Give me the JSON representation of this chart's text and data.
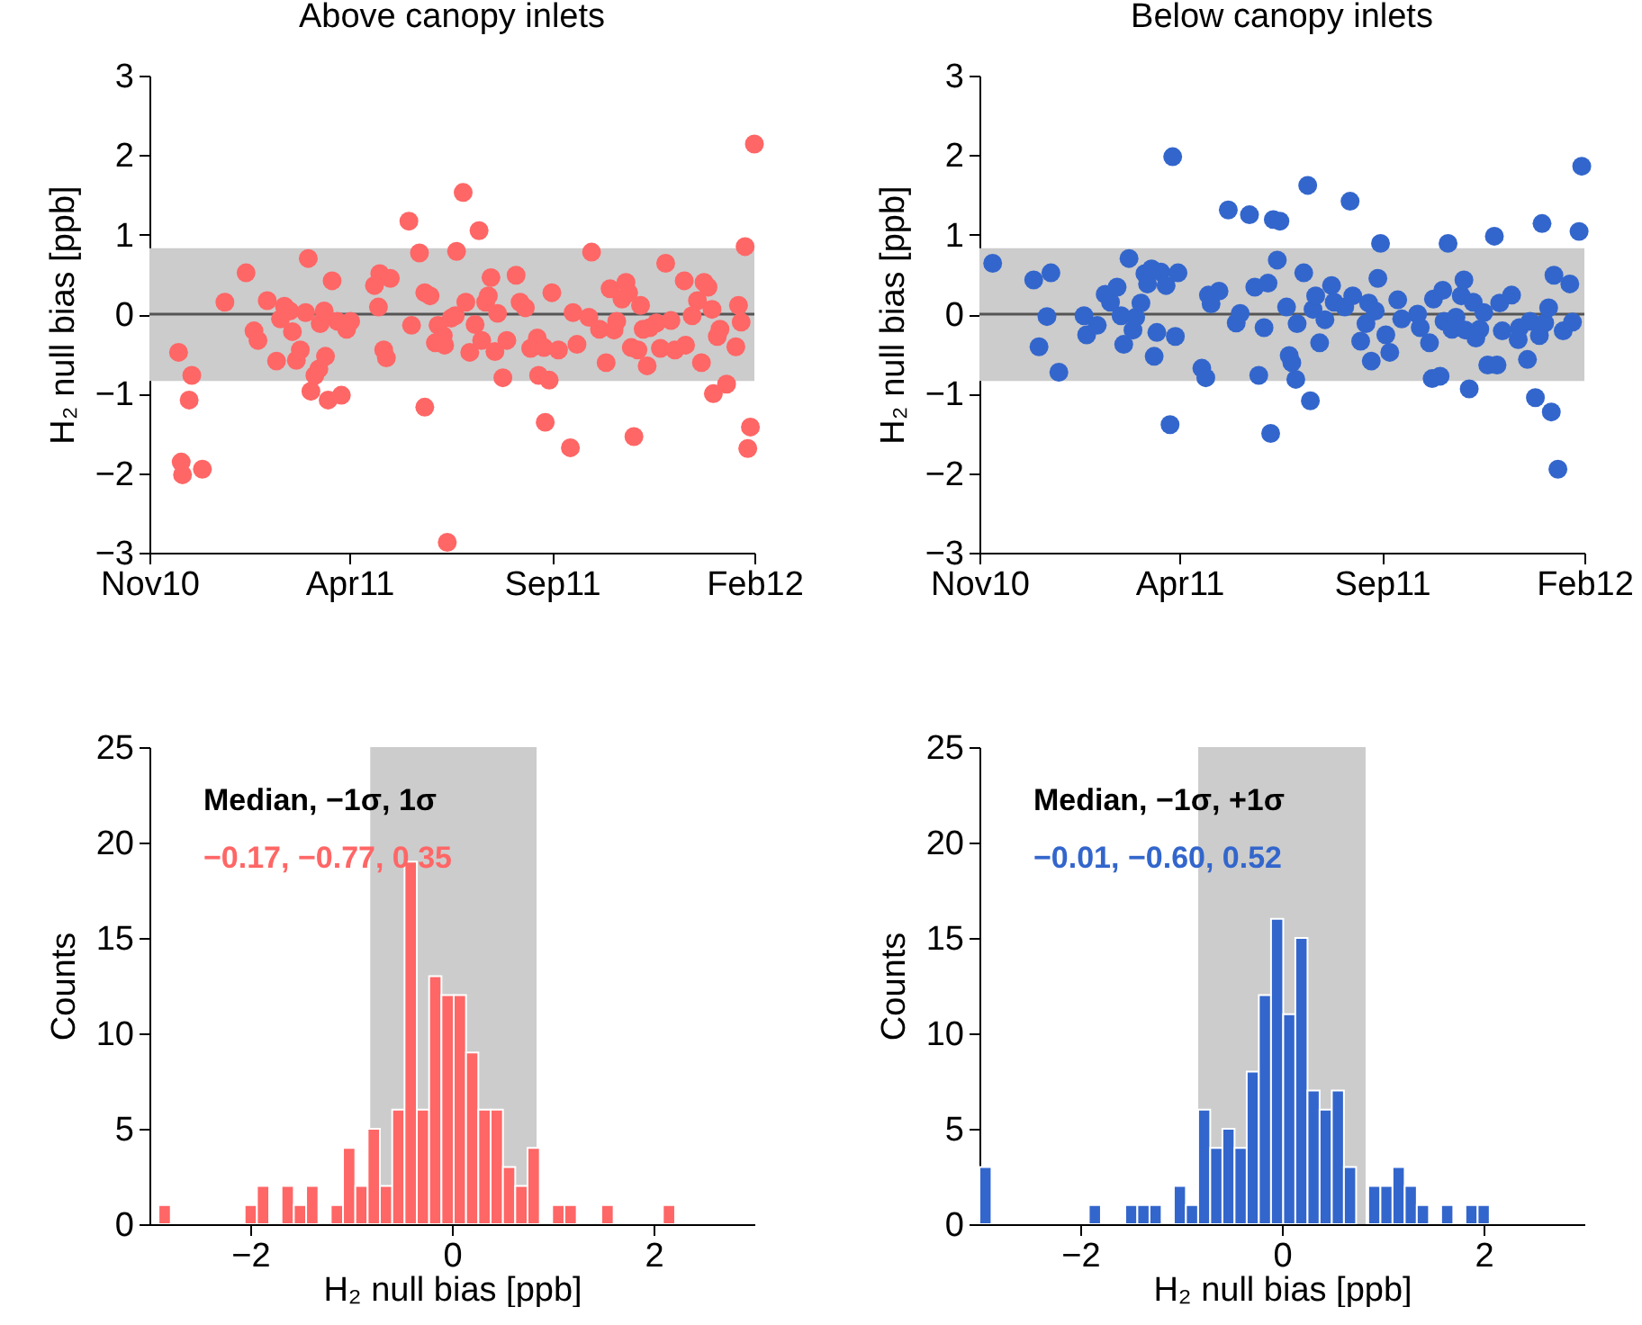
{
  "chart_data": [
    {
      "type": "scatter",
      "title": "Above canopy inlets",
      "ylabel": "H₂ null bias [ppb]",
      "marker": "circle",
      "x": [
        "2010-11-23",
        "2010-12-03",
        "2010-12-01",
        "2010-11-25",
        "2010-11-26",
        "2010-12-11",
        "2010-12-28",
        "2011-01-13",
        "2011-01-19",
        "2011-01-22",
        "2011-01-29",
        "2011-02-05",
        "2011-02-08",
        "2011-02-11",
        "2011-02-15",
        "2011-02-17",
        "2011-02-20",
        "2011-02-23",
        "2011-03-01",
        "2011-02-27",
        "2011-03-03",
        "2011-03-06",
        "2011-03-09",
        "2011-03-10",
        "2011-03-13",
        "2011-03-14",
        "2011-03-19",
        "2011-03-16",
        "2011-03-26",
        "2011-03-23",
        "2011-03-30",
        "2011-04-02",
        "2011-04-20",
        "2011-04-24",
        "2011-05-02",
        "2011-04-23",
        "2011-04-27",
        "2011-04-29",
        "2011-05-16",
        "2011-05-18",
        "2011-05-24",
        "2011-05-28",
        "2011-06-01",
        "2011-05-28",
        "2011-06-05",
        "2011-06-07",
        "2011-06-11",
        "2011-06-12",
        "2011-06-14",
        "2011-06-17",
        "2011-06-21",
        "2011-06-20",
        "2011-06-26",
        "2011-06-28",
        "2011-07-01",
        "2011-07-05",
        "2011-07-08",
        "2011-07-10",
        "2011-07-13",
        "2011-07-15",
        "2011-07-17",
        "2011-07-20",
        "2011-07-22",
        "2011-07-26",
        "2011-07-29",
        "2011-08-05",
        "2011-08-08",
        "2011-08-12",
        "2011-08-16",
        "2011-08-21",
        "2011-08-22",
        "2011-08-26",
        "2011-08-27",
        "2011-08-30",
        "2011-09-01",
        "2011-09-06",
        "2011-09-15",
        "2011-09-17",
        "2011-09-20",
        "2011-09-29",
        "2011-10-01",
        "2011-10-07",
        "2011-10-12",
        "2011-10-15",
        "2011-10-18",
        "2011-10-20",
        "2011-10-27",
        "2011-10-24",
        "2011-10-29",
        "2011-10-31",
        "2011-11-02",
        "2011-11-05",
        "2011-11-07",
        "2011-11-09",
        "2011-11-12",
        "2011-11-14",
        "2011-11-19",
        "2011-11-26",
        "2011-11-30",
        "2011-11-22",
        "2011-12-03",
        "2011-12-10",
        "2011-12-11",
        "2011-12-16",
        "2011-12-20",
        "2011-12-23",
        "2011-12-25",
        "2011-12-28",
        "2011-12-31",
        "2012-01-01",
        "2012-01-04",
        "2012-01-06",
        "2012-01-11",
        "2012-01-18",
        "2012-01-20",
        "2012-01-22",
        "2012-01-25",
        "2012-01-27",
        "2012-01-29",
        "2012-02-01"
      ],
      "series": [
        {
          "color": "#ff6666",
          "values": [
            -0.48,
            -0.77,
            -1.08,
            -1.86,
            -2.02,
            -1.95,
            0.15,
            0.52,
            -0.21,
            -0.33,
            0.17,
            -0.59,
            -0.06,
            0.1,
            0.04,
            -0.22,
            -0.58,
            -0.45,
            0.7,
            0.02,
            -0.97,
            -0.77,
            -0.69,
            -0.12,
            0.04,
            -0.53,
            0.42,
            -1.08,
            -1.02,
            -0.09,
            -0.19,
            -0.09,
            0.36,
            0.51,
            0.45,
            0.09,
            -0.45,
            -0.55,
            1.17,
            -0.14,
            0.77,
            0.27,
            0.23,
            -1.17,
            -0.36,
            -0.14,
            -0.27,
            -0.39,
            -2.87,
            -0.05,
            0.79,
            -0.02,
            1.53,
            0.15,
            -0.48,
            -0.13,
            1.05,
            -0.33,
            0.15,
            0.23,
            0.46,
            -0.47,
            0.01,
            -0.8,
            -0.33,
            0.49,
            0.15,
            0.08,
            -0.43,
            -0.3,
            -0.77,
            -0.42,
            -1.36,
            -0.83,
            0.27,
            -0.45,
            -1.68,
            0.02,
            -0.38,
            -0.04,
            0.78,
            -0.19,
            -0.61,
            0.32,
            -0.2,
            -0.09,
            0.4,
            0.19,
            0.27,
            -0.42,
            -1.54,
            -0.45,
            0.11,
            -0.19,
            -0.65,
            -0.17,
            -0.11,
            0.64,
            -0.08,
            -0.43,
            -0.45,
            0.42,
            -0.39,
            -0.02,
            0.17,
            -0.61,
            0.4,
            0.34,
            0.06,
            -1.0,
            -0.28,
            -0.19,
            -0.88,
            -0.41,
            0.11,
            -0.1,
            0.85,
            -1.69,
            -1.42,
            2.14
          ]
        }
      ],
      "xlim": [
        "2010-11-01",
        "2012-02-01"
      ],
      "xticks": [
        {
          "value": "2010-11-01",
          "label": "Nov10"
        },
        {
          "value": "2011-04-01",
          "label": "Apr11"
        },
        {
          "value": "2011-09-01",
          "label": "Sep11"
        },
        {
          "value": "2012-02-01",
          "label": "Feb12"
        }
      ],
      "ylim": [
        -3,
        3
      ],
      "yticks": [
        -3,
        -2,
        -1,
        0,
        1,
        2,
        3
      ],
      "ref_lines": [
        {
          "axis": "y",
          "value": 0,
          "color": "#555555"
        }
      ],
      "bands": [
        {
          "axis": "y",
          "from": -0.84,
          "to": 0.83,
          "color": "#cccccc"
        }
      ]
    },
    {
      "type": "scatter",
      "title": "Below canopy inlets",
      "ylabel": "H₂ null bias [ppb]",
      "marker": "circle",
      "x": [
        "2010-11-11",
        "2010-12-12",
        "2010-12-25",
        "2010-12-16",
        "2010-12-22",
        "2010-12-31",
        "2011-01-19",
        "2011-01-21",
        "2011-01-29",
        "2011-02-04",
        "2011-02-08",
        "2011-02-13",
        "2011-02-16",
        "2011-02-18",
        "2011-02-22",
        "2011-02-25",
        "2011-02-27",
        "2011-03-03",
        "2011-03-06",
        "2011-03-08",
        "2011-03-11",
        "2011-03-13",
        "2011-03-15",
        "2011-03-18",
        "2011-03-22",
        "2011-03-25",
        "2011-03-27",
        "2011-03-29",
        "2011-03-31",
        "2011-04-18",
        "2011-04-21",
        "2011-04-23",
        "2011-04-25",
        "2011-05-01",
        "2011-05-08",
        "2011-05-14",
        "2011-05-17",
        "2011-05-24",
        "2011-05-28",
        "2011-05-31",
        "2011-06-04",
        "2011-06-07",
        "2011-06-09",
        "2011-06-11",
        "2011-06-16",
        "2011-06-14",
        "2011-06-21",
        "2011-06-23",
        "2011-06-25",
        "2011-06-28",
        "2011-06-29",
        "2011-07-04",
        "2011-07-07",
        "2011-07-09",
        "2011-07-11",
        "2011-07-13",
        "2011-07-16",
        "2011-07-20",
        "2011-07-25",
        "2011-07-27",
        "2011-08-04",
        "2011-08-08",
        "2011-08-10",
        "2011-08-16",
        "2011-08-20",
        "2011-08-22",
        "2011-08-24",
        "2011-08-27",
        "2011-08-29",
        "2011-08-31",
        "2011-09-04",
        "2011-09-07",
        "2011-09-13",
        "2011-09-16",
        "2011-09-28",
        "2011-09-30",
        "2011-10-07",
        "2011-10-09",
        "2011-10-15",
        "2011-10-10",
        "2011-10-17",
        "2011-10-18",
        "2011-10-21",
        "2011-10-24",
        "2011-10-27",
        "2011-10-31",
        "2011-11-02",
        "2011-11-03",
        "2011-11-06",
        "2011-11-09",
        "2011-11-11",
        "2011-11-14",
        "2011-11-17",
        "2011-11-20",
        "2011-11-25",
        "2011-11-27",
        "2011-11-29",
        "2011-12-01",
        "2011-12-08",
        "2011-12-13",
        "2011-12-14",
        "2011-12-20",
        "2011-12-22",
        "2011-12-26",
        "2011-12-29",
        "2011-12-31",
        "2012-01-02",
        "2012-01-05",
        "2012-01-07",
        "2012-01-09",
        "2012-01-12",
        "2012-01-16",
        "2012-01-21",
        "2012-01-23",
        "2012-01-28",
        "2012-01-30"
      ],
      "series": [
        {
          "color": "#3366cc",
          "values": [
            0.64,
            0.43,
            0.52,
            -0.41,
            -0.03,
            -0.73,
            -0.02,
            -0.26,
            -0.14,
            0.25,
            0.15,
            0.34,
            -0.02,
            -0.38,
            0.7,
            -0.2,
            -0.04,
            0.14,
            0.51,
            0.38,
            0.57,
            -0.53,
            -0.23,
            0.53,
            0.36,
            -1.39,
            1.98,
            -0.28,
            0.52,
            -0.68,
            -0.8,
            0.24,
            0.13,
            0.29,
            1.31,
            -0.11,
            0.01,
            1.25,
            0.34,
            -0.77,
            -0.17,
            0.39,
            -1.5,
            1.19,
            1.17,
            0.68,
            0.09,
            -0.52,
            -0.61,
            -0.82,
            -0.12,
            0.52,
            1.62,
            -1.09,
            0.06,
            0.23,
            -0.36,
            -0.07,
            0.36,
            0.15,
            0.09,
            1.42,
            0.23,
            -0.34,
            -0.12,
            0.14,
            -0.59,
            0.04,
            0.45,
            0.89,
            -0.26,
            -0.48,
            0.18,
            -0.06,
            0.0,
            -0.17,
            -0.36,
            -0.81,
            -0.78,
            0.19,
            0.3,
            -0.09,
            0.89,
            -0.19,
            -0.04,
            0.23,
            0.43,
            -0.2,
            -0.94,
            0.15,
            -0.3,
            -0.19,
            0.02,
            -0.64,
            0.98,
            -0.64,
            0.14,
            -0.21,
            0.24,
            -0.32,
            -0.17,
            -0.57,
            -0.09,
            -1.05,
            -0.27,
            1.14,
            -0.11,
            0.08,
            -1.23,
            0.49,
            -1.95,
            -0.21,
            0.38,
            -0.1,
            1.04,
            1.86
          ]
        }
      ],
      "xlim": [
        "2010-11-01",
        "2012-02-01"
      ],
      "xticks": [
        {
          "value": "2010-11-01",
          "label": "Nov10"
        },
        {
          "value": "2011-04-01",
          "label": "Apr11"
        },
        {
          "value": "2011-09-01",
          "label": "Sep11"
        },
        {
          "value": "2012-02-01",
          "label": "Feb12"
        }
      ],
      "ylim": [
        -3,
        3
      ],
      "yticks": [
        -3,
        -2,
        -1,
        0,
        1,
        2,
        3
      ],
      "ref_lines": [
        {
          "axis": "y",
          "value": 0,
          "color": "#555555"
        }
      ],
      "bands": [
        {
          "axis": "y",
          "from": -0.84,
          "to": 0.83,
          "color": "#cccccc"
        }
      ]
    },
    {
      "type": "histogram",
      "xlabel": "H₂ null bias [ppb]",
      "ylabel": "Counts",
      "color": "#ff6666",
      "bins": [
        -2.91,
        -2.788,
        -2.666,
        -2.544,
        -2.422,
        -2.3,
        -2.178,
        -2.056,
        -1.934,
        -1.812,
        -1.69,
        -1.568,
        -1.446,
        -1.324,
        -1.202,
        -1.08,
        -0.958,
        -0.836,
        -0.714,
        -0.592,
        -0.47,
        -0.348,
        -0.226,
        -0.104,
        0.018,
        0.14,
        0.262,
        0.384,
        0.506,
        0.628,
        0.75,
        0.872,
        0.994,
        1.116,
        1.238,
        1.36,
        1.482,
        1.604,
        1.726,
        1.848,
        1.97,
        2.092,
        2.214
      ],
      "values": [
        1,
        0,
        0,
        0,
        0,
        0,
        0,
        1,
        2,
        0,
        2,
        1,
        2,
        0,
        1,
        4,
        2,
        5,
        2,
        6,
        19,
        6,
        13,
        12,
        12,
        9,
        6,
        6,
        3,
        2,
        4,
        0,
        1,
        1,
        0,
        0,
        1,
        0,
        0,
        0,
        0,
        1
      ],
      "xlim": [
        -3,
        3
      ],
      "xticks": [
        -2,
        0,
        2
      ],
      "ylim": [
        0,
        25
      ],
      "yticks": [
        0,
        5,
        10,
        15,
        20,
        25
      ],
      "bands": [
        {
          "axis": "x",
          "from": -0.81,
          "to": 0.84,
          "color": "#cccccc"
        }
      ],
      "annotations": [
        "Median, −1σ, 1σ",
        "−0.17, −0.77, 0.35"
      ]
    },
    {
      "type": "histogram",
      "xlabel": "H₂ null bias [ppb]",
      "ylabel": "Counts",
      "color": "#3366cc",
      "bins": [
        -3.0,
        -2.88,
        -2.759,
        -2.639,
        -2.518,
        -2.398,
        -2.277,
        -2.157,
        -2.036,
        -1.916,
        -1.795,
        -1.675,
        -1.554,
        -1.434,
        -1.313,
        -1.193,
        -1.072,
        -0.952,
        -0.831,
        -0.711,
        -0.59,
        -0.47,
        -0.349,
        -0.229,
        -0.108,
        0.013,
        0.133,
        0.254,
        0.374,
        0.495,
        0.615,
        0.736,
        0.856,
        0.977,
        1.097,
        1.218,
        1.338,
        1.459,
        1.579,
        1.7,
        1.82,
        1.941,
        2.061
      ],
      "values": [
        3,
        0,
        0,
        0,
        0,
        0,
        0,
        0,
        0,
        1,
        0,
        0,
        1,
        1,
        1,
        0,
        2,
        1,
        6,
        4,
        5,
        4,
        8,
        12,
        16,
        11,
        15,
        7,
        6,
        7,
        3,
        0,
        2,
        2,
        3,
        2,
        1,
        0,
        1,
        0,
        1,
        1
      ],
      "xlim": [
        -3,
        3
      ],
      "xticks": [
        -2,
        0,
        2
      ],
      "ylim": [
        0,
        25
      ],
      "yticks": [
        0,
        5,
        10,
        15,
        20,
        25
      ],
      "bands": [
        {
          "axis": "x",
          "from": -0.83,
          "to": 0.83,
          "color": "#cccccc"
        }
      ],
      "annotations": [
        "Median, −1σ, +1σ",
        "−0.01, −0.60, 0.52"
      ]
    }
  ]
}
